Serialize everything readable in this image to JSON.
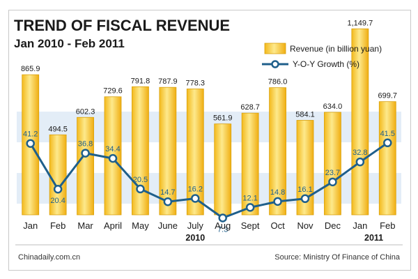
{
  "chart_data": {
    "type": "bar",
    "title": "TREND OF FISCAL REVENUE",
    "subtitle": "Jan 2010 - Feb 2011",
    "categories": [
      "Jan",
      "Feb",
      "Mar",
      "April",
      "May",
      "June",
      "July",
      "Aug",
      "Sept",
      "Oct",
      "Nov",
      "Dec",
      "Jan",
      "Feb"
    ],
    "year_labels": [
      {
        "label": "2010",
        "category_index": 6
      },
      {
        "label": "2011",
        "category_index": 12.5
      }
    ],
    "series": [
      {
        "name": "Revenue (in billion yuan)",
        "type": "bar",
        "values": [
          865.9,
          494.5,
          602.3,
          729.6,
          791.8,
          787.9,
          778.3,
          561.9,
          628.7,
          786.0,
          584.1,
          634.0,
          1149.7,
          699.7
        ],
        "labels": [
          "865.9",
          "494.5",
          "602.3",
          "729.6",
          "791.8",
          "787.9",
          "778.3",
          "561.9",
          "628.7",
          "786.0",
          "584.1",
          "634.0",
          "1,149.7",
          "699.7"
        ]
      },
      {
        "name": "Y-O-Y Growth (%)",
        "type": "line",
        "values": [
          41.2,
          20.4,
          36.8,
          34.4,
          20.5,
          14.7,
          16.2,
          7.3,
          12.1,
          14.8,
          16.1,
          23.7,
          32.8,
          41.5
        ],
        "labels": [
          "41.2",
          "20.4",
          "36.8",
          "34.4",
          "20.5",
          "14.7",
          "16.2",
          "7.3",
          "12.1",
          "14.8",
          "16.1",
          "23.7",
          "32.8",
          "41.5"
        ]
      }
    ],
    "legend_position": "top-right",
    "grid": false,
    "colors": {
      "bar": "#f6c22a",
      "bar_light": "#fde98c",
      "line": "#1f5f8b",
      "band": "#d7e6f4"
    },
    "footer_left": "Chinadaily.com.cn",
    "footer_right": "Source: Ministry Of Finance of China"
  }
}
